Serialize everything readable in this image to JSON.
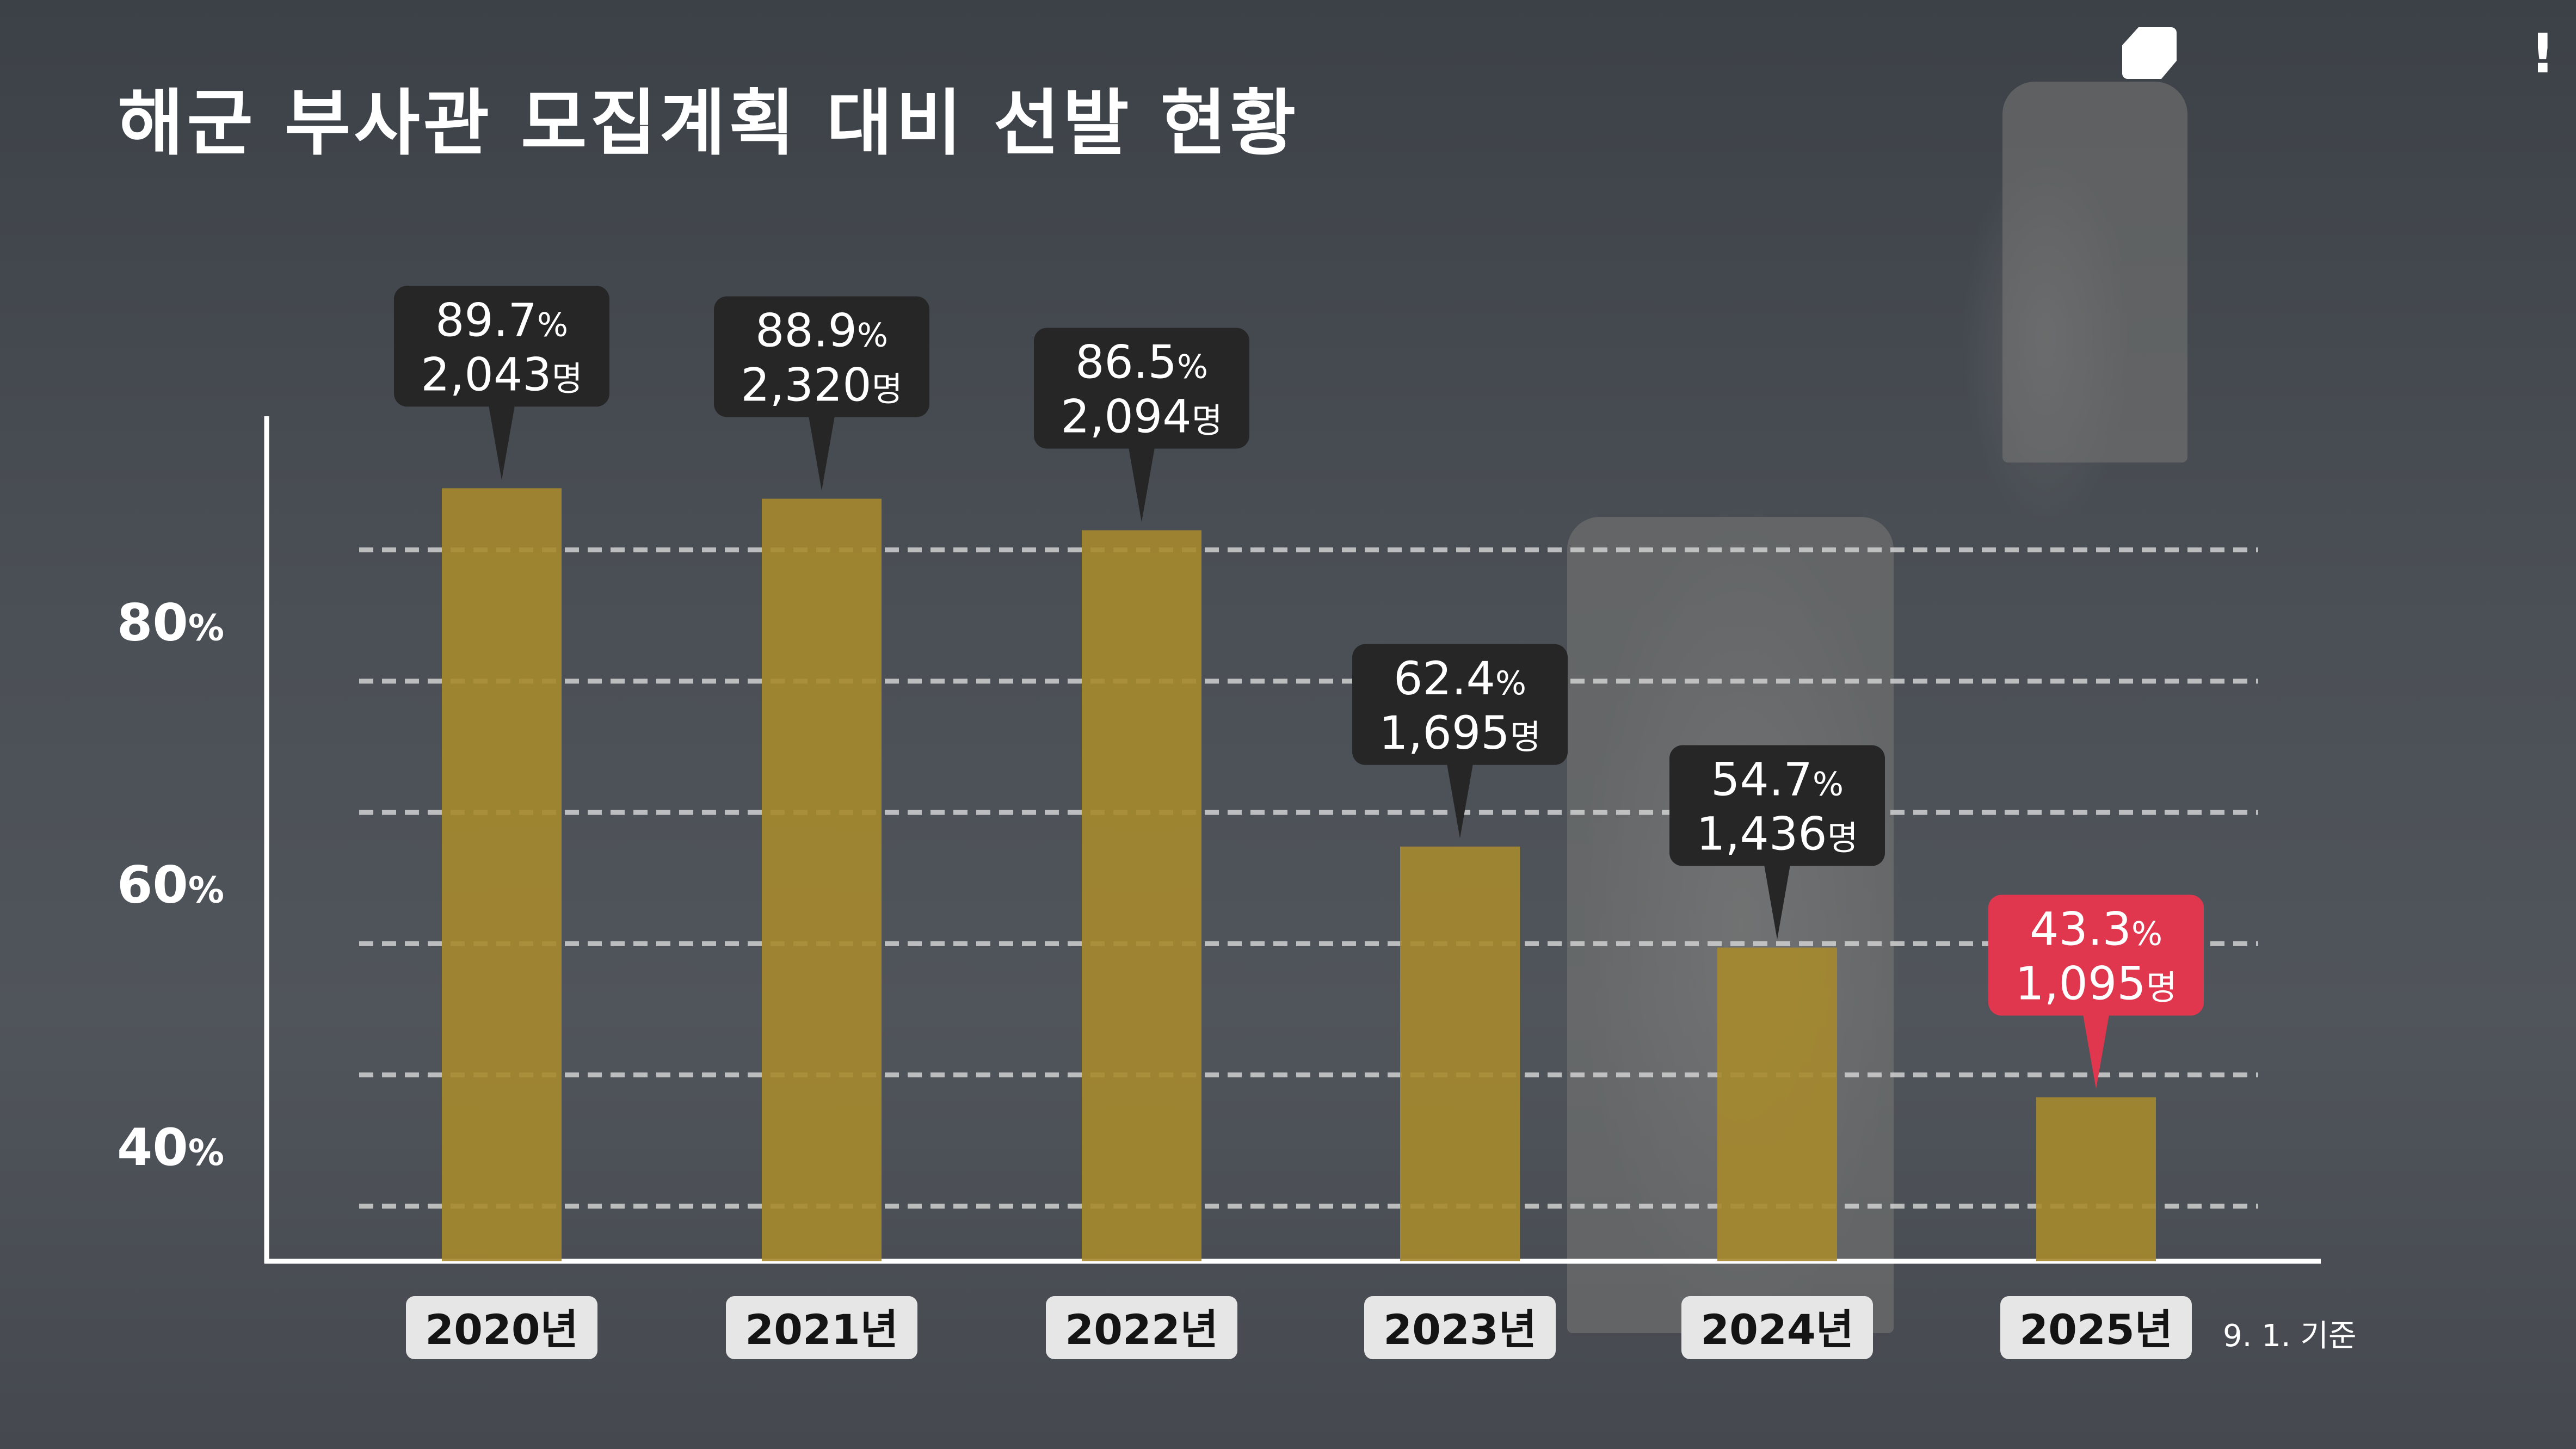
{
  "title": "해군 부사관 모집계획 대비 선발 현황",
  "footnote": "9. 1. 기준",
  "colors": {
    "bar": "#a68a2e",
    "callout_default": "#262626",
    "callout_highlight": "#e0374f",
    "category_box": "#e6e6e6",
    "axis": "#ffffff",
    "grid": "#d0d0d0"
  },
  "chart_data": {
    "type": "bar",
    "title": "해군 부사관 모집계획 대비 선발 현황",
    "categories": [
      "2020년",
      "2021년",
      "2022년",
      "2023년",
      "2024년",
      "2025년"
    ],
    "series": [
      {
        "values": [
          89.7,
          88.9,
          86.5,
          62.4,
          54.7,
          43.3
        ],
        "unit": "%",
        "counts": [
          "2,043",
          "2,320",
          "2,094",
          "1,695",
          "1,436",
          "1,095"
        ],
        "count_unit": "명"
      }
    ],
    "y_ticks": [
      {
        "value": 80,
        "label": "80",
        "unit": "%"
      },
      {
        "value": 60,
        "label": "60",
        "unit": "%"
      },
      {
        "value": 40,
        "label": "40",
        "unit": "%"
      }
    ],
    "ylim": [
      30.8,
      90.5
    ],
    "grid": true,
    "highlight_category": "2025년",
    "xlabel": "",
    "ylabel": ""
  }
}
